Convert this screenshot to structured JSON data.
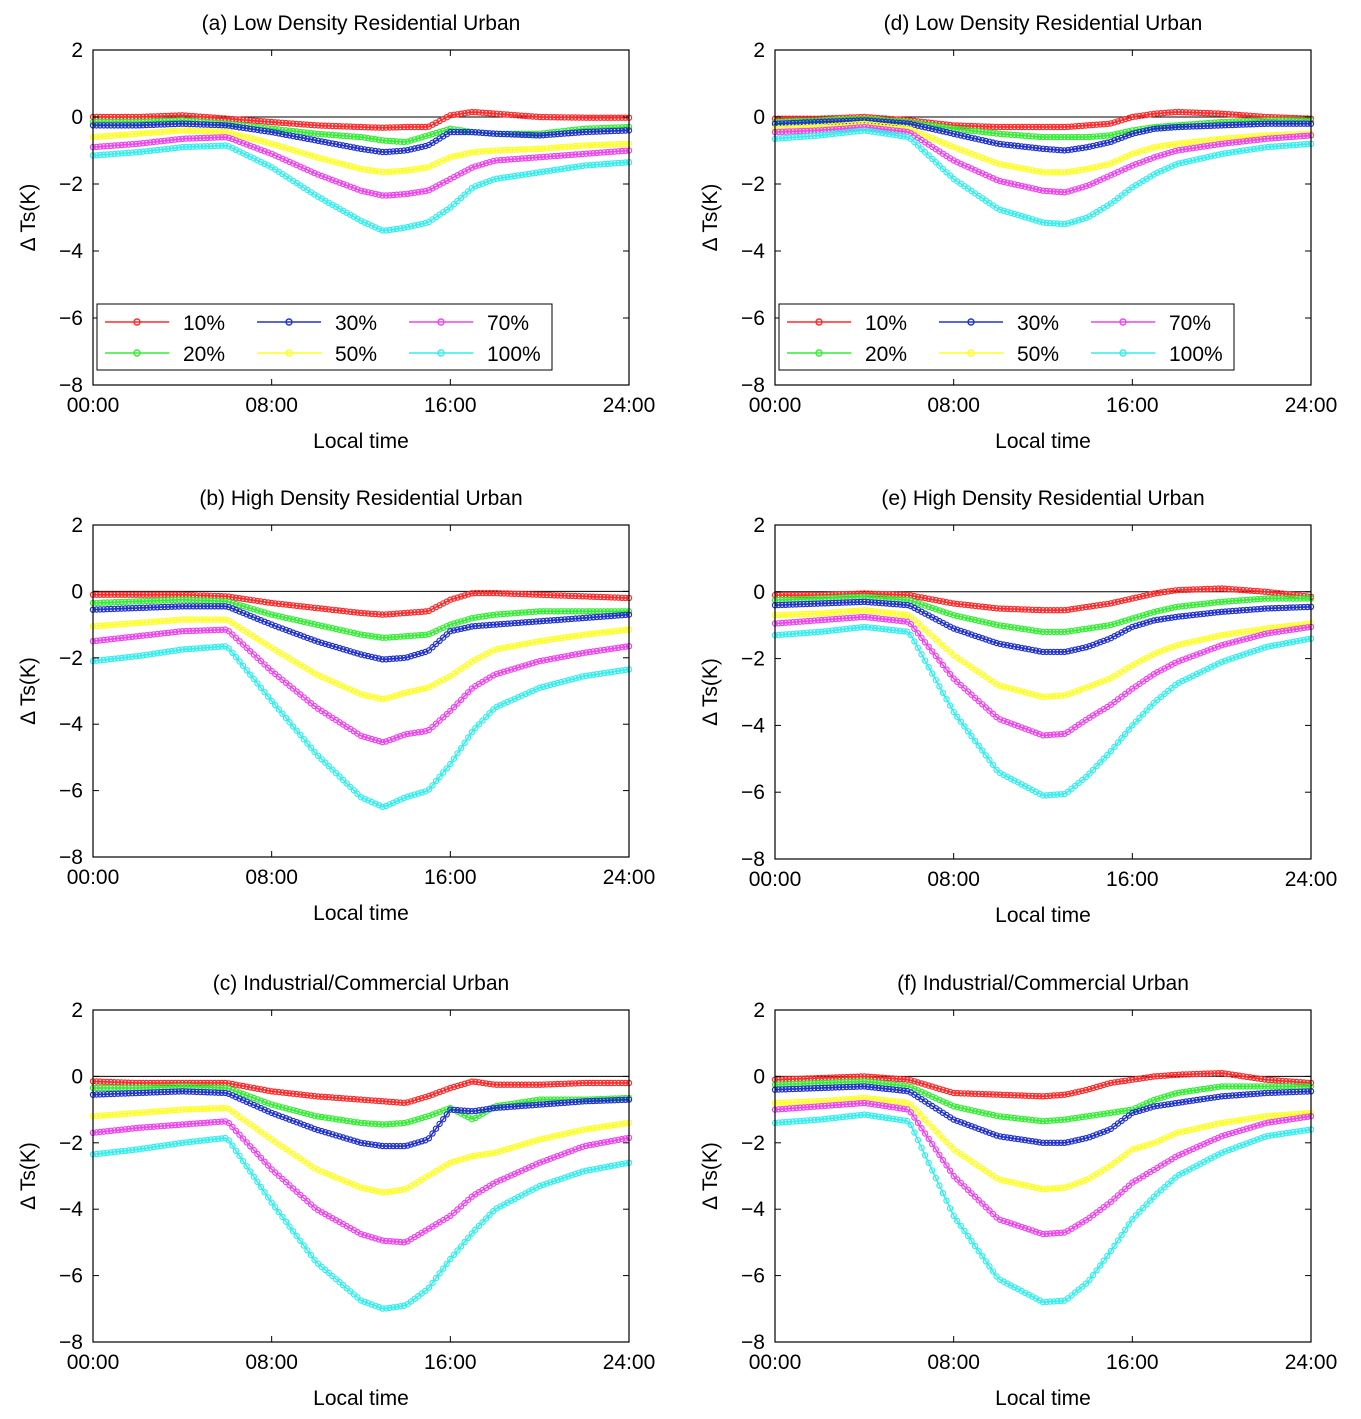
{
  "figure": {
    "x_ticks": [
      "00:00",
      "08:00",
      "16:00",
      "24:00"
    ],
    "y_ticks": [
      "2",
      "0",
      "−2",
      "−4",
      "−6",
      "−8"
    ]
  },
  "chart_data": [
    {
      "type": "line",
      "title": "(a) Low Density Residential Urban",
      "xlabel": "Local time",
      "ylabel": "Δ Ts(K)",
      "xlim": [
        0,
        24
      ],
      "ylim": [
        -8,
        2
      ],
      "x": [
        0,
        2,
        4,
        6,
        8,
        10,
        12,
        13,
        14,
        15,
        16,
        17,
        18,
        20,
        22,
        24
      ],
      "legend": {
        "placement": "lower-left",
        "columns": 3
      },
      "series": [
        {
          "name": "10%",
          "color": "#ff2a2a",
          "values": [
            0.0,
            0.0,
            0.05,
            -0.05,
            -0.15,
            -0.25,
            -0.3,
            -0.32,
            -0.3,
            -0.3,
            0.05,
            0.15,
            0.1,
            0.0,
            -0.02,
            -0.02
          ]
        },
        {
          "name": "20%",
          "color": "#33ee33",
          "values": [
            -0.15,
            -0.15,
            -0.1,
            -0.2,
            -0.35,
            -0.5,
            -0.6,
            -0.7,
            -0.75,
            -0.55,
            -0.35,
            -0.45,
            -0.5,
            -0.5,
            -0.35,
            -0.3
          ]
        },
        {
          "name": "30%",
          "color": "#2233cc",
          "values": [
            -0.25,
            -0.25,
            -0.2,
            -0.25,
            -0.45,
            -0.7,
            -0.95,
            -1.05,
            -1.0,
            -0.85,
            -0.45,
            -0.45,
            -0.5,
            -0.55,
            -0.45,
            -0.4
          ]
        },
        {
          "name": "50%",
          "color": "#ffff22",
          "values": [
            -0.6,
            -0.5,
            -0.4,
            -0.45,
            -0.8,
            -1.2,
            -1.55,
            -1.65,
            -1.6,
            -1.5,
            -1.2,
            -1.05,
            -1.0,
            -0.95,
            -0.85,
            -0.8
          ]
        },
        {
          "name": "70%",
          "color": "#ee44ee",
          "values": [
            -0.9,
            -0.8,
            -0.65,
            -0.6,
            -1.1,
            -1.7,
            -2.2,
            -2.35,
            -2.3,
            -2.2,
            -1.85,
            -1.5,
            -1.3,
            -1.2,
            -1.1,
            -1.0
          ]
        },
        {
          "name": "100%",
          "color": "#33eeee",
          "values": [
            -1.15,
            -1.05,
            -0.9,
            -0.85,
            -1.5,
            -2.35,
            -3.1,
            -3.4,
            -3.3,
            -3.15,
            -2.7,
            -2.1,
            -1.85,
            -1.65,
            -1.45,
            -1.35
          ]
        }
      ]
    },
    {
      "type": "line",
      "title": "(b) High Density Residential Urban",
      "xlabel": "Local time",
      "ylabel": "Δ Ts(K)",
      "xlim": [
        0,
        24
      ],
      "ylim": [
        -8,
        2
      ],
      "x": [
        0,
        2,
        4,
        6,
        8,
        10,
        12,
        13,
        14,
        15,
        16,
        17,
        18,
        20,
        22,
        24
      ],
      "series": [
        {
          "name": "10%",
          "color": "#ff2a2a",
          "values": [
            -0.1,
            -0.1,
            -0.1,
            -0.15,
            -0.35,
            -0.5,
            -0.65,
            -0.7,
            -0.65,
            -0.6,
            -0.25,
            -0.05,
            -0.05,
            -0.1,
            -0.15,
            -0.2
          ]
        },
        {
          "name": "20%",
          "color": "#33ee33",
          "values": [
            -0.35,
            -0.3,
            -0.25,
            -0.3,
            -0.7,
            -1.0,
            -1.3,
            -1.4,
            -1.35,
            -1.3,
            -1.0,
            -0.8,
            -0.7,
            -0.6,
            -0.6,
            -0.6
          ]
        },
        {
          "name": "30%",
          "color": "#2233cc",
          "values": [
            -0.55,
            -0.5,
            -0.45,
            -0.45,
            -1.0,
            -1.5,
            -1.9,
            -2.05,
            -2.0,
            -1.8,
            -1.2,
            -1.05,
            -1.0,
            -0.9,
            -0.8,
            -0.7
          ]
        },
        {
          "name": "50%",
          "color": "#ffff22",
          "values": [
            -1.05,
            -0.95,
            -0.85,
            -0.85,
            -1.7,
            -2.5,
            -3.1,
            -3.25,
            -3.05,
            -2.9,
            -2.55,
            -2.1,
            -1.75,
            -1.5,
            -1.3,
            -1.15
          ]
        },
        {
          "name": "70%",
          "color": "#ee44ee",
          "values": [
            -1.5,
            -1.35,
            -1.2,
            -1.15,
            -2.4,
            -3.5,
            -4.35,
            -4.55,
            -4.3,
            -4.2,
            -3.6,
            -2.9,
            -2.5,
            -2.1,
            -1.85,
            -1.65
          ]
        },
        {
          "name": "100%",
          "color": "#33eeee",
          "values": [
            -2.1,
            -1.95,
            -1.75,
            -1.65,
            -3.3,
            -4.9,
            -6.2,
            -6.5,
            -6.2,
            -6.0,
            -5.2,
            -4.2,
            -3.5,
            -2.9,
            -2.55,
            -2.35
          ]
        }
      ]
    },
    {
      "type": "line",
      "title": "(c)  Industrial/Commercial Urban",
      "xlabel": "Local time",
      "ylabel": "Δ Ts(K)",
      "xlim": [
        0,
        24
      ],
      "ylim": [
        -8,
        2
      ],
      "x": [
        0,
        2,
        4,
        6,
        8,
        10,
        12,
        13,
        14,
        15,
        16,
        17,
        18,
        20,
        22,
        24
      ],
      "series": [
        {
          "name": "10%",
          "color": "#ff2a2a",
          "values": [
            -0.15,
            -0.2,
            -0.2,
            -0.2,
            -0.45,
            -0.6,
            -0.7,
            -0.75,
            -0.8,
            -0.6,
            -0.35,
            -0.15,
            -0.25,
            -0.25,
            -0.2,
            -0.2
          ]
        },
        {
          "name": "20%",
          "color": "#33ee33",
          "values": [
            -0.35,
            -0.35,
            -0.3,
            -0.35,
            -0.85,
            -1.2,
            -1.4,
            -1.45,
            -1.4,
            -1.2,
            -0.95,
            -1.3,
            -0.9,
            -0.7,
            -0.7,
            -0.65
          ]
        },
        {
          "name": "30%",
          "color": "#2233cc",
          "values": [
            -0.55,
            -0.5,
            -0.45,
            -0.5,
            -1.1,
            -1.6,
            -2.0,
            -2.1,
            -2.1,
            -1.9,
            -1.0,
            -1.05,
            -0.95,
            -0.85,
            -0.75,
            -0.7
          ]
        },
        {
          "name": "50%",
          "color": "#ffff22",
          "values": [
            -1.2,
            -1.1,
            -1.0,
            -0.95,
            -1.9,
            -2.8,
            -3.35,
            -3.5,
            -3.4,
            -3.0,
            -2.6,
            -2.4,
            -2.3,
            -1.9,
            -1.6,
            -1.4
          ]
        },
        {
          "name": "70%",
          "color": "#ee44ee",
          "values": [
            -1.7,
            -1.55,
            -1.45,
            -1.35,
            -2.8,
            -4.0,
            -4.75,
            -4.95,
            -5.0,
            -4.6,
            -4.2,
            -3.6,
            -3.2,
            -2.6,
            -2.1,
            -1.85
          ]
        },
        {
          "name": "100%",
          "color": "#33eeee",
          "values": [
            -2.35,
            -2.2,
            -2.0,
            -1.85,
            -3.8,
            -5.6,
            -6.75,
            -7.0,
            -6.9,
            -6.4,
            -5.5,
            -4.7,
            -4.0,
            -3.3,
            -2.85,
            -2.6
          ]
        }
      ]
    },
    {
      "type": "line",
      "title": "(d)  Low Density Residential Urban",
      "xlabel": "Local time",
      "ylabel": "Δ Ts(K)",
      "xlim": [
        0,
        24
      ],
      "ylim": [
        -8,
        2
      ],
      "x": [
        0,
        2,
        4,
        6,
        8,
        10,
        12,
        13,
        14,
        15,
        16,
        17,
        18,
        20,
        22,
        24
      ],
      "legend": {
        "placement": "lower-left",
        "columns": 3
      },
      "series": [
        {
          "name": "10%",
          "color": "#ff2a2a",
          "values": [
            -0.05,
            -0.05,
            0.0,
            -0.1,
            -0.25,
            -0.3,
            -0.3,
            -0.3,
            -0.25,
            -0.2,
            0.0,
            0.1,
            0.15,
            0.1,
            0.0,
            -0.05
          ]
        },
        {
          "name": "20%",
          "color": "#33ee33",
          "values": [
            -0.15,
            -0.1,
            -0.05,
            -0.15,
            -0.35,
            -0.5,
            -0.6,
            -0.6,
            -0.6,
            -0.55,
            -0.4,
            -0.3,
            -0.25,
            -0.15,
            -0.1,
            -0.1
          ]
        },
        {
          "name": "30%",
          "color": "#2233cc",
          "values": [
            -0.2,
            -0.15,
            -0.1,
            -0.2,
            -0.5,
            -0.8,
            -0.95,
            -1.0,
            -0.9,
            -0.75,
            -0.5,
            -0.35,
            -0.3,
            -0.25,
            -0.2,
            -0.2
          ]
        },
        {
          "name": "50%",
          "color": "#ffff22",
          "values": [
            -0.35,
            -0.3,
            -0.2,
            -0.35,
            -0.9,
            -1.4,
            -1.65,
            -1.65,
            -1.55,
            -1.4,
            -1.1,
            -0.9,
            -0.8,
            -0.65,
            -0.55,
            -0.5
          ]
        },
        {
          "name": "70%",
          "color": "#ee44ee",
          "values": [
            -0.45,
            -0.4,
            -0.3,
            -0.45,
            -1.3,
            -1.9,
            -2.2,
            -2.25,
            -2.05,
            -1.75,
            -1.45,
            -1.2,
            -1.0,
            -0.8,
            -0.65,
            -0.55
          ]
        },
        {
          "name": "100%",
          "color": "#33eeee",
          "values": [
            -0.65,
            -0.55,
            -0.4,
            -0.6,
            -1.85,
            -2.75,
            -3.15,
            -3.2,
            -3.0,
            -2.6,
            -2.1,
            -1.7,
            -1.4,
            -1.1,
            -0.9,
            -0.8
          ]
        }
      ]
    },
    {
      "type": "line",
      "title": "(e)  High Density Residential Urban",
      "xlabel": "Local time",
      "ylabel": "Δ Ts(K)",
      "xlim": [
        0,
        24
      ],
      "ylim": [
        -8,
        2
      ],
      "x": [
        0,
        2,
        4,
        6,
        8,
        10,
        12,
        13,
        14,
        15,
        16,
        17,
        18,
        20,
        22,
        24
      ],
      "series": [
        {
          "name": "10%",
          "color": "#ff2a2a",
          "values": [
            -0.1,
            -0.1,
            -0.05,
            -0.1,
            -0.35,
            -0.5,
            -0.55,
            -0.55,
            -0.45,
            -0.35,
            -0.2,
            -0.05,
            0.05,
            0.1,
            0.0,
            -0.15
          ]
        },
        {
          "name": "20%",
          "color": "#33ee33",
          "values": [
            -0.25,
            -0.2,
            -0.15,
            -0.25,
            -0.7,
            -1.0,
            -1.2,
            -1.2,
            -1.1,
            -1.0,
            -0.8,
            -0.6,
            -0.45,
            -0.3,
            -0.2,
            -0.2
          ]
        },
        {
          "name": "30%",
          "color": "#2233cc",
          "values": [
            -0.4,
            -0.35,
            -0.3,
            -0.4,
            -1.1,
            -1.55,
            -1.8,
            -1.8,
            -1.65,
            -1.4,
            -1.05,
            -0.85,
            -0.75,
            -0.6,
            -0.5,
            -0.45
          ]
        },
        {
          "name": "50%",
          "color": "#ffff22",
          "values": [
            -0.7,
            -0.65,
            -0.55,
            -0.7,
            -1.9,
            -2.8,
            -3.15,
            -3.1,
            -2.85,
            -2.6,
            -2.2,
            -1.85,
            -1.6,
            -1.3,
            -1.1,
            -0.95
          ]
        },
        {
          "name": "70%",
          "color": "#ee44ee",
          "values": [
            -0.95,
            -0.85,
            -0.75,
            -0.9,
            -2.6,
            -3.8,
            -4.3,
            -4.25,
            -3.8,
            -3.4,
            -2.9,
            -2.45,
            -2.1,
            -1.6,
            -1.25,
            -1.05
          ]
        },
        {
          "name": "100%",
          "color": "#33eeee",
          "values": [
            -1.3,
            -1.2,
            -1.05,
            -1.2,
            -3.6,
            -5.4,
            -6.1,
            -6.05,
            -5.5,
            -4.8,
            -4.0,
            -3.3,
            -2.75,
            -2.1,
            -1.65,
            -1.4
          ]
        }
      ]
    },
    {
      "type": "line",
      "title": "(f)  Industrial/Commercial Urban",
      "xlabel": "Local time",
      "ylabel": "Δ Ts(K)",
      "xlim": [
        0,
        24
      ],
      "ylim": [
        -8,
        2
      ],
      "x": [
        0,
        2,
        4,
        6,
        8,
        10,
        12,
        13,
        14,
        15,
        16,
        17,
        18,
        20,
        22,
        24
      ],
      "series": [
        {
          "name": "10%",
          "color": "#ff2a2a",
          "values": [
            -0.1,
            -0.05,
            0.0,
            -0.1,
            -0.5,
            -0.55,
            -0.6,
            -0.55,
            -0.4,
            -0.2,
            -0.1,
            0.0,
            0.05,
            0.1,
            -0.1,
            -0.2
          ]
        },
        {
          "name": "20%",
          "color": "#33ee33",
          "values": [
            -0.25,
            -0.2,
            -0.15,
            -0.3,
            -0.9,
            -1.2,
            -1.35,
            -1.3,
            -1.2,
            -1.1,
            -1.0,
            -0.7,
            -0.5,
            -0.3,
            -0.3,
            -0.3
          ]
        },
        {
          "name": "30%",
          "color": "#2233cc",
          "values": [
            -0.4,
            -0.35,
            -0.3,
            -0.45,
            -1.3,
            -1.8,
            -2.0,
            -2.0,
            -1.85,
            -1.6,
            -1.1,
            -0.9,
            -0.8,
            -0.6,
            -0.5,
            -0.45
          ]
        },
        {
          "name": "50%",
          "color": "#ffff22",
          "values": [
            -0.8,
            -0.75,
            -0.65,
            -0.8,
            -2.2,
            -3.1,
            -3.4,
            -3.35,
            -3.1,
            -2.7,
            -2.2,
            -2.0,
            -1.7,
            -1.4,
            -1.2,
            -1.1
          ]
        },
        {
          "name": "70%",
          "color": "#ee44ee",
          "values": [
            -1.0,
            -0.9,
            -0.8,
            -1.0,
            -3.0,
            -4.3,
            -4.75,
            -4.7,
            -4.3,
            -3.8,
            -3.2,
            -2.8,
            -2.4,
            -1.8,
            -1.4,
            -1.2
          ]
        },
        {
          "name": "100%",
          "color": "#33eeee",
          "values": [
            -1.4,
            -1.3,
            -1.15,
            -1.35,
            -4.2,
            -6.1,
            -6.8,
            -6.75,
            -6.2,
            -5.3,
            -4.3,
            -3.6,
            -3.0,
            -2.3,
            -1.8,
            -1.6
          ]
        }
      ]
    }
  ]
}
